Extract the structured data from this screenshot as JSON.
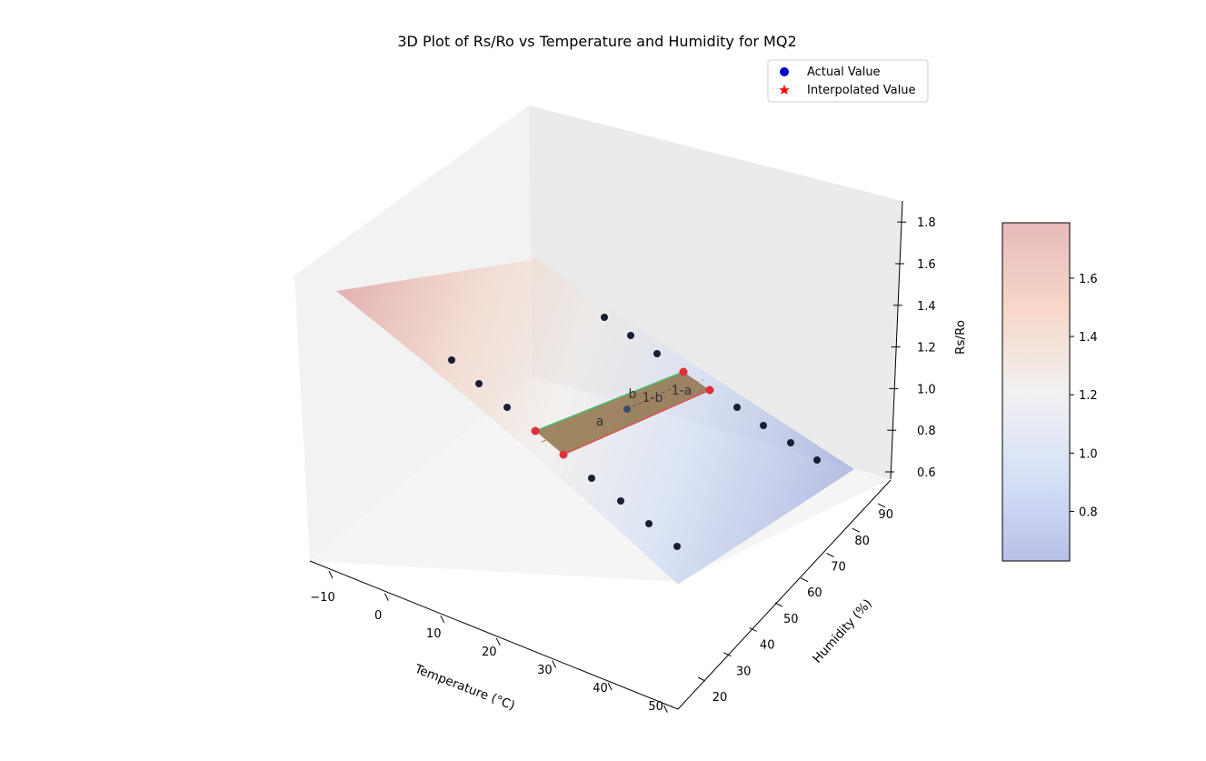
{
  "chart_data": {
    "type": "surface3d",
    "title": "3D Plot of Rs/Ro vs Temperature and Humidity for MQ2",
    "xlabel": "Temperature (°C)",
    "ylabel": "Humidity (%)",
    "zlabel": "Rs/Ro",
    "xlim": [
      -15,
      55
    ],
    "ylim": [
      18,
      95
    ],
    "zlim": [
      0.55,
      1.9
    ],
    "x_ticks": [
      "−10",
      "0",
      "10",
      "20",
      "30",
      "40",
      "50"
    ],
    "y_ticks": [
      "20",
      "30",
      "40",
      "50",
      "60",
      "70",
      "80",
      "90"
    ],
    "z_ticks": [
      "0.6",
      "0.8",
      "1.0",
      "1.2",
      "1.4",
      "1.6",
      "1.8"
    ],
    "colormap": "coolwarm",
    "colorbar": {
      "range": [
        0.63,
        1.79
      ],
      "ticks": [
        "0.8",
        "1.0",
        "1.2",
        "1.4",
        "1.6"
      ]
    },
    "legend": {
      "placement": "top-right",
      "entries": [
        {
          "label": "Actual Value",
          "marker": "circle",
          "color": "#0000cc"
        },
        {
          "label": "Interpolated Value",
          "marker": "star",
          "color": "#ff0000"
        }
      ]
    },
    "series": [
      {
        "name": "Actual Value",
        "points": [
          {
            "x": -10,
            "y": 33,
            "z": 1.7
          },
          {
            "x": -10,
            "y": 55,
            "z": 1.45
          },
          {
            "x": -10,
            "y": 85,
            "z": 1.3
          },
          {
            "x": 0,
            "y": 33,
            "z": 1.55
          },
          {
            "x": 0,
            "y": 55,
            "z": 1.35
          },
          {
            "x": 0,
            "y": 85,
            "z": 1.22
          },
          {
            "x": 10,
            "y": 33,
            "z": 1.42
          },
          {
            "x": 10,
            "y": 55,
            "z": 1.25
          },
          {
            "x": 10,
            "y": 85,
            "z": 1.1
          },
          {
            "x": 30,
            "y": 33,
            "z": 1.05
          },
          {
            "x": 30,
            "y": 55,
            "z": 0.95
          },
          {
            "x": 30,
            "y": 85,
            "z": 0.82
          },
          {
            "x": 40,
            "y": 33,
            "z": 0.95
          },
          {
            "x": 40,
            "y": 55,
            "z": 0.87
          },
          {
            "x": 40,
            "y": 85,
            "z": 0.75
          },
          {
            "x": 50,
            "y": 33,
            "z": 0.88
          },
          {
            "x": 50,
            "y": 55,
            "z": 0.8
          },
          {
            "x": 50,
            "y": 85,
            "z": 0.68
          }
        ]
      },
      {
        "name": "Interpolated Value",
        "points": [
          {
            "x": 20,
            "y": 45,
            "z": 1.22
          },
          {
            "x": 20,
            "y": 70,
            "z": 1.08
          }
        ]
      }
    ],
    "annotations": [
      "a",
      "b",
      "1-a",
      "1-b"
    ]
  }
}
